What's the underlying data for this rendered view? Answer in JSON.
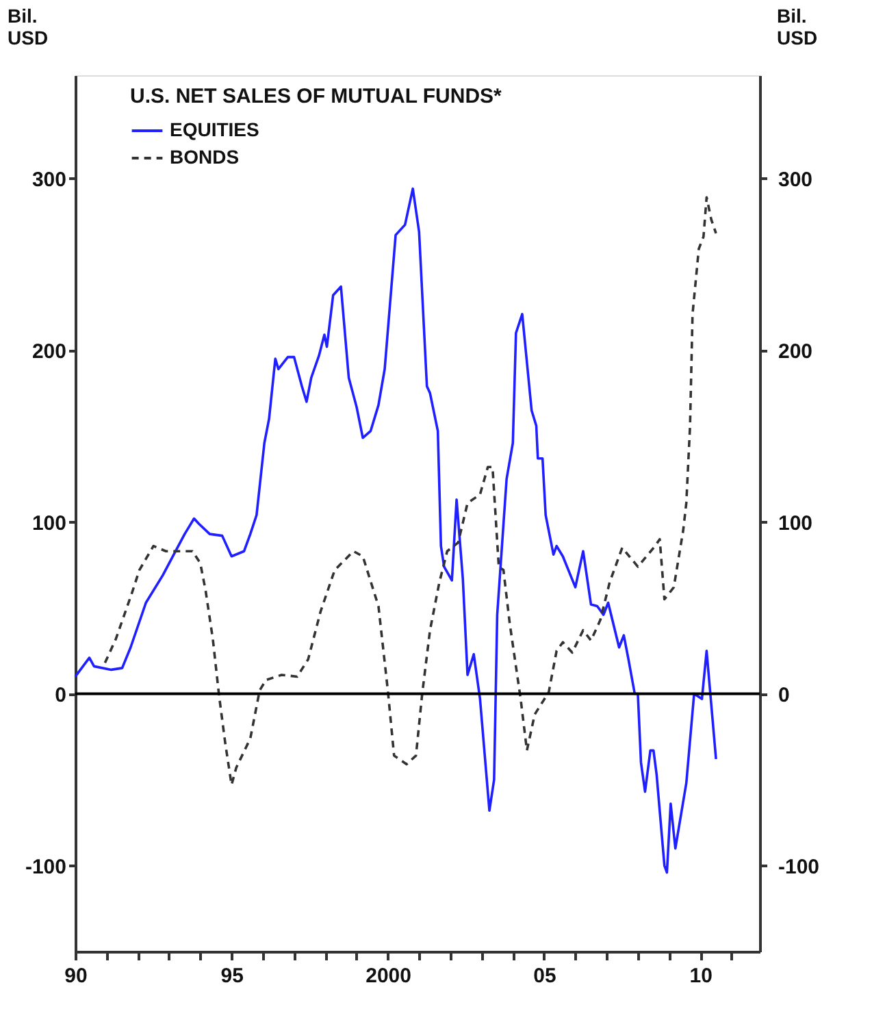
{
  "chart_data": {
    "type": "line",
    "title": "U.S. NET SALES OF MUTUAL FUNDS*",
    "ylabel": "Bil. USD",
    "y2label": "Bil. USD",
    "xlim": [
      1990,
      2011.9
    ],
    "xticks": [
      {
        "value": 1990,
        "label": "90"
      },
      {
        "value": 1991,
        "label": null
      },
      {
        "value": 1992,
        "label": null
      },
      {
        "value": 1993,
        "label": null
      },
      {
        "value": 1994,
        "label": null
      },
      {
        "value": 1995,
        "label": "95"
      },
      {
        "value": 1996,
        "label": null
      },
      {
        "value": 1997,
        "label": null
      },
      {
        "value": 1998,
        "label": null
      },
      {
        "value": 1999,
        "label": null
      },
      {
        "value": 2000,
        "label": "2000"
      },
      {
        "value": 2001,
        "label": null
      },
      {
        "value": 2002,
        "label": null
      },
      {
        "value": 2003,
        "label": null
      },
      {
        "value": 2004,
        "label": null
      },
      {
        "value": 2005,
        "label": "05"
      },
      {
        "value": 2006,
        "label": null
      },
      {
        "value": 2007,
        "label": null
      },
      {
        "value": 2008,
        "label": null
      },
      {
        "value": 2009,
        "label": null
      },
      {
        "value": 2010,
        "label": "10"
      },
      {
        "value": 2011,
        "label": null
      }
    ],
    "ylim": [
      -150,
      360
    ],
    "yticks": [
      -100,
      0,
      100,
      200,
      300
    ],
    "y2lim": [
      -150,
      360
    ],
    "y2ticks": [
      -100,
      0,
      100,
      200,
      300
    ],
    "grid": false,
    "legend": "top left",
    "marker": "none",
    "ref_lines": [
      {
        "axis": "y",
        "value": 0,
        "label": null,
        "color": "#000000",
        "line_style": "solid"
      }
    ],
    "series": [
      {
        "name": "EQUITIES",
        "color": "#1f1fff",
        "line_style": "solid",
        "x": [
          1990.0,
          1990.45,
          1990.6,
          1991.15,
          1991.5,
          1991.77,
          1992.26,
          1992.8,
          1993.5,
          1993.8,
          1993.95,
          1994.3,
          1994.7,
          1995.0,
          1995.4,
          1995.6,
          1995.8,
          1996.05,
          1996.2,
          1996.4,
          1996.5,
          1996.8,
          1997.0,
          1997.25,
          1997.4,
          1997.55,
          1997.8,
          1997.97,
          1998.05,
          1998.25,
          1998.5,
          1998.75,
          1999.0,
          1999.2,
          1999.45,
          1999.7,
          1999.9,
          2000.25,
          2000.55,
          2000.8,
          2001.0,
          2001.25,
          2001.35,
          2001.6,
          2001.7,
          2001.8,
          2002.05,
          2002.2,
          2002.4,
          2002.55,
          2002.75,
          2002.95,
          2003.25,
          2003.4,
          2003.5,
          2003.8,
          2004.0,
          2004.1,
          2004.3,
          2004.6,
          2004.75,
          2004.8,
          2004.95,
          2005.05,
          2005.3,
          2005.4,
          2005.6,
          2006.0,
          2006.25,
          2006.5,
          2006.7,
          2006.9,
          2007.05,
          2007.4,
          2007.55,
          2007.7,
          2007.9,
          2008.0,
          2008.1,
          2008.23,
          2008.4,
          2008.5,
          2008.6,
          2008.85,
          2008.93,
          2009.05,
          2009.2,
          2009.55,
          2009.8,
          2010.05,
          2010.2,
          2010.5
        ],
        "values": [
          10,
          21,
          16,
          14,
          15,
          27,
          53,
          69,
          93,
          102,
          99,
          93,
          92,
          80,
          83,
          93,
          104,
          146,
          160,
          195,
          189,
          196,
          196,
          179,
          170,
          184,
          197,
          209,
          202,
          232,
          237,
          184,
          167,
          149,
          153,
          168,
          189,
          267,
          273,
          294,
          269,
          179,
          175,
          153,
          86,
          74,
          66,
          113,
          67,
          11,
          23,
          -3,
          -68,
          -50,
          46,
          125,
          146,
          210,
          221,
          165,
          156,
          137,
          137,
          104,
          81,
          86,
          80,
          62,
          83,
          52,
          51,
          46,
          53,
          27,
          34,
          20,
          0,
          0,
          -40,
          -57,
          -33,
          -33,
          -47,
          -100,
          -104,
          -64,
          -90,
          -52,
          0,
          -3,
          25,
          -38
        ]
      },
      {
        "name": "BONDS",
        "color": "#333333",
        "line_style": "dashed",
        "x": [
          1990.95,
          1991.3,
          1991.8,
          1992.05,
          1992.5,
          1992.9,
          1993.3,
          1993.75,
          1994.0,
          1994.17,
          1994.4,
          1994.6,
          1994.8,
          1995.0,
          1995.15,
          1995.6,
          1995.9,
          1996.1,
          1996.6,
          1997.1,
          1997.45,
          1997.85,
          1998.3,
          1998.9,
          1999.2,
          1999.7,
          2000.0,
          2000.2,
          2000.6,
          2000.9,
          2001.1,
          2001.35,
          2001.65,
          2001.9,
          2002.25,
          2002.55,
          2002.95,
          2003.2,
          2003.35,
          2003.55,
          2003.7,
          2003.9,
          2004.25,
          2004.45,
          2004.7,
          2005.15,
          2005.4,
          2005.6,
          2005.9,
          2006.25,
          2006.5,
          2006.8,
          2007.1,
          2007.5,
          2008.0,
          2008.55,
          2008.7,
          2008.85,
          2009.15,
          2009.45,
          2009.55,
          2009.67,
          2009.75,
          2009.95,
          2010.1,
          2010.2,
          2010.35,
          2010.5
        ],
        "values": [
          18,
          32,
          58,
          72,
          86,
          83,
          83,
          83,
          76,
          60,
          32,
          -1,
          -29,
          -53,
          -43,
          -26,
          2,
          8,
          11,
          10,
          20,
          48,
          72,
          83,
          80,
          51,
          2,
          -36,
          -41,
          -36,
          0,
          37,
          65,
          83,
          88,
          111,
          116,
          132,
          132,
          74,
          72,
          41,
          -3,
          -33,
          -12,
          1,
          25,
          30,
          24,
          37,
          31,
          43,
          65,
          85,
          74,
          86,
          90,
          55,
          62,
          95,
          111,
          156,
          221,
          259,
          266,
          289,
          276,
          268
        ]
      }
    ]
  }
}
